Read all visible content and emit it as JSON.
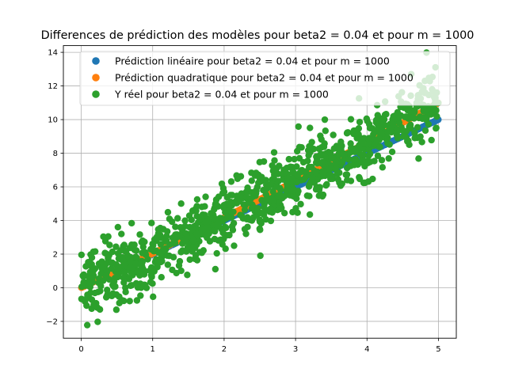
{
  "chart_data": {
    "type": "scatter",
    "title": "Differences de prédiction des modèles pour beta2 = 0.04 et pour m = 1000",
    "xlabel": "",
    "ylabel": "",
    "xlim": [
      -0.25,
      5.25
    ],
    "ylim": [
      -3.0,
      14.4
    ],
    "xticks": [
      0,
      1,
      2,
      3,
      4,
      5
    ],
    "yticks": [
      -2,
      0,
      2,
      4,
      6,
      8,
      10,
      12,
      14
    ],
    "xtick_labels": [
      "0",
      "1",
      "2",
      "3",
      "4",
      "5"
    ],
    "ytick_labels": [
      "−2",
      "0",
      "2",
      "4",
      "6",
      "8",
      "10",
      "12",
      "14"
    ],
    "grid": true,
    "legend_position": "top-center",
    "series": [
      {
        "name": "Prédiction linéaire pour beta2 = 0.04 et pour m = 1000",
        "color": "#1f77b4",
        "model": {
          "kind": "linear",
          "intercept": 0.0,
          "slope": 2.0
        },
        "x_range": [
          0.0,
          5.0
        ],
        "n_points": 1000
      },
      {
        "name": "Prédiction quadratique pour beta2 = 0.04 et pour m = 1000",
        "color": "#ff7f0e",
        "model": {
          "kind": "quadratic",
          "intercept": 0.0,
          "slope": 2.0,
          "quad": 0.04
        },
        "x_range": [
          0.0,
          5.0
        ],
        "n_points": 1000
      },
      {
        "name": "Y réel pour beta2 = 0.04 et pour m = 1000",
        "color": "#2ca02c",
        "model": {
          "kind": "noisy",
          "intercept": 0.0,
          "slope": 2.0,
          "quad": 0.04,
          "noise_sd": 1.0
        },
        "x_range": [
          0.0,
          5.0
        ],
        "n_points": 1000
      }
    ]
  }
}
